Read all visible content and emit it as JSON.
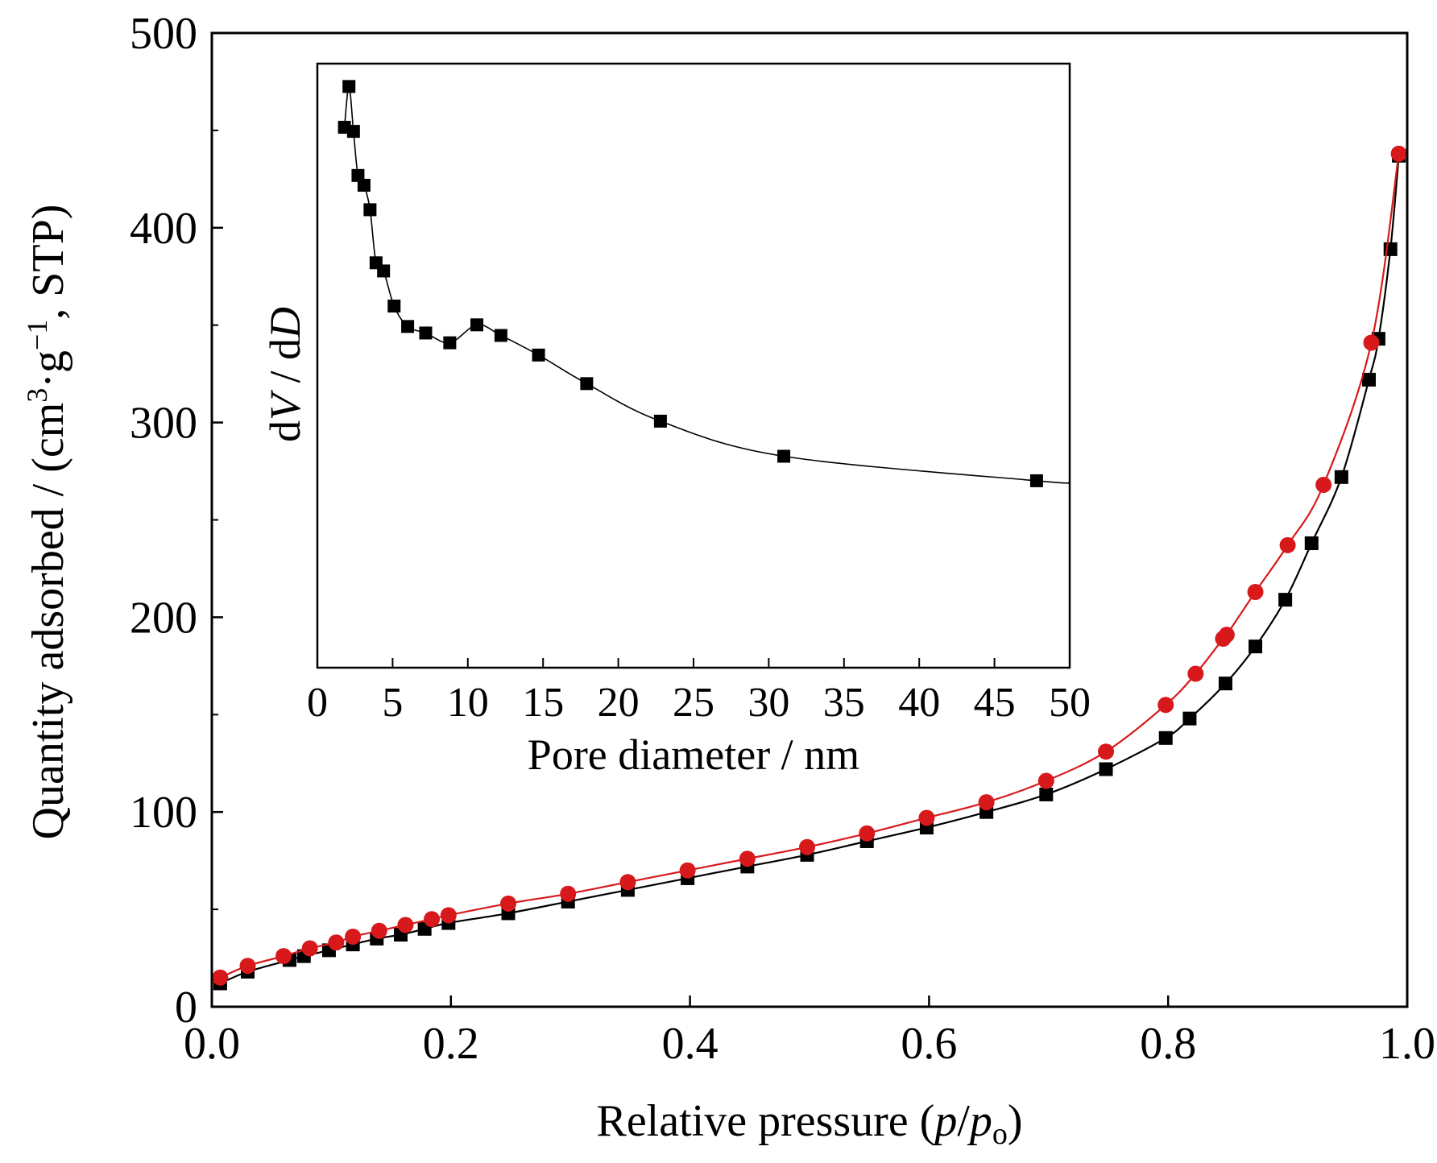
{
  "chart_data": [
    {
      "type": "line",
      "role": "main",
      "xlabel": {
        "text": "Relative pressure (",
        "var1": "p",
        "slash": "/",
        "var2": "p",
        "sub": "o",
        "close": ")"
      },
      "ylabel": {
        "text": "Quantity adsorbed / (cm",
        "sup1": "3",
        "mid": "·g",
        "sup2": "−1",
        "end": ", STP)"
      },
      "xlim": [
        0.0,
        1.0
      ],
      "ylim": [
        0,
        500
      ],
      "xticks": [
        0.0,
        0.2,
        0.4,
        0.6,
        0.8,
        1.0
      ],
      "xtick_labels": [
        "0.0",
        "0.2",
        "0.4",
        "0.6",
        "0.8",
        "1.0"
      ],
      "yticks": [
        0,
        100,
        200,
        300,
        400,
        500
      ],
      "ytick_labels": [
        "0",
        "100",
        "200",
        "300",
        "400",
        "500"
      ],
      "y_minor_ticks": [
        50,
        150,
        250,
        350,
        450
      ],
      "grid": false,
      "series": [
        {
          "marker": "square",
          "color": "#000000",
          "line_color": "#000000",
          "points": [
            [
              0.007,
              12
            ],
            [
              0.03,
              18
            ],
            [
              0.065,
              24
            ],
            [
              0.077,
              26
            ],
            [
              0.098,
              29
            ],
            [
              0.118,
              32
            ],
            [
              0.138,
              35
            ],
            [
              0.158,
              37
            ],
            [
              0.178,
              40
            ],
            [
              0.198,
              43
            ],
            [
              0.248,
              48
            ],
            [
              0.298,
              54
            ],
            [
              0.348,
              60
            ],
            [
              0.398,
              66
            ],
            [
              0.448,
              72
            ],
            [
              0.498,
              78
            ],
            [
              0.548,
              85
            ],
            [
              0.598,
              92
            ],
            [
              0.648,
              100
            ],
            [
              0.698,
              109
            ],
            [
              0.748,
              122
            ],
            [
              0.798,
              138
            ],
            [
              0.818,
              148
            ],
            [
              0.848,
              166
            ],
            [
              0.873,
              185
            ],
            [
              0.898,
              209
            ],
            [
              0.92,
              238
            ],
            [
              0.945,
              272
            ],
            [
              0.968,
              322
            ],
            [
              0.976,
              343
            ],
            [
              0.986,
              389
            ],
            [
              0.993,
              437
            ]
          ]
        },
        {
          "marker": "circle",
          "color": "#d7191c",
          "line_color": "#d7191c",
          "points": [
            [
              0.007,
              15
            ],
            [
              0.03,
              21
            ],
            [
              0.06,
              26
            ],
            [
              0.082,
              30
            ],
            [
              0.104,
              33
            ],
            [
              0.118,
              36
            ],
            [
              0.14,
              39
            ],
            [
              0.162,
              42
            ],
            [
              0.184,
              45
            ],
            [
              0.198,
              47
            ],
            [
              0.248,
              53
            ],
            [
              0.298,
              58
            ],
            [
              0.348,
              64
            ],
            [
              0.398,
              70
            ],
            [
              0.448,
              76
            ],
            [
              0.498,
              82
            ],
            [
              0.548,
              89
            ],
            [
              0.598,
              97
            ],
            [
              0.648,
              105
            ],
            [
              0.698,
              116
            ],
            [
              0.748,
              131
            ],
            [
              0.798,
              155
            ],
            [
              0.823,
              171
            ],
            [
              0.846,
              189
            ],
            [
              0.849,
              191
            ],
            [
              0.873,
              213
            ],
            [
              0.9,
              237
            ],
            [
              0.93,
              268
            ],
            [
              0.97,
              341
            ],
            [
              0.993,
              438
            ]
          ]
        }
      ]
    },
    {
      "type": "line",
      "role": "inset",
      "xlabel": "Pore diameter / nm",
      "ylabel": {
        "d1": "d",
        "v": "V",
        "mid": " / d",
        "d2": "D"
      },
      "xlim": [
        0,
        50
      ],
      "ylim": [
        0.22,
        0.96
      ],
      "xticks": [
        0,
        5,
        10,
        15,
        20,
        25,
        30,
        35,
        40,
        45,
        50
      ],
      "xtick_labels": [
        "0",
        "5",
        "10",
        "15",
        "20",
        "25",
        "30",
        "35",
        "40",
        "45",
        "50"
      ],
      "y_ticks_shown": false,
      "grid": false,
      "series": [
        {
          "marker": "square",
          "color": "#000000",
          "line_color": "#000000",
          "points": [
            [
              1.8,
              0.882
            ],
            [
              2.1,
              0.932
            ],
            [
              2.4,
              0.877
            ],
            [
              2.7,
              0.823
            ],
            [
              3.1,
              0.811
            ],
            [
              3.5,
              0.781
            ],
            [
              3.9,
              0.716
            ],
            [
              4.4,
              0.706
            ],
            [
              5.1,
              0.663
            ],
            [
              6.0,
              0.638
            ],
            [
              7.2,
              0.63
            ],
            [
              8.8,
              0.618
            ],
            [
              10.6,
              0.64
            ],
            [
              12.2,
              0.627
            ],
            [
              14.7,
              0.603
            ],
            [
              17.9,
              0.568
            ],
            [
              22.8,
              0.522
            ],
            [
              31.0,
              0.479
            ],
            [
              47.8,
              0.449
            ]
          ],
          "line_end": [
            50,
            0.447
          ]
        }
      ]
    }
  ]
}
